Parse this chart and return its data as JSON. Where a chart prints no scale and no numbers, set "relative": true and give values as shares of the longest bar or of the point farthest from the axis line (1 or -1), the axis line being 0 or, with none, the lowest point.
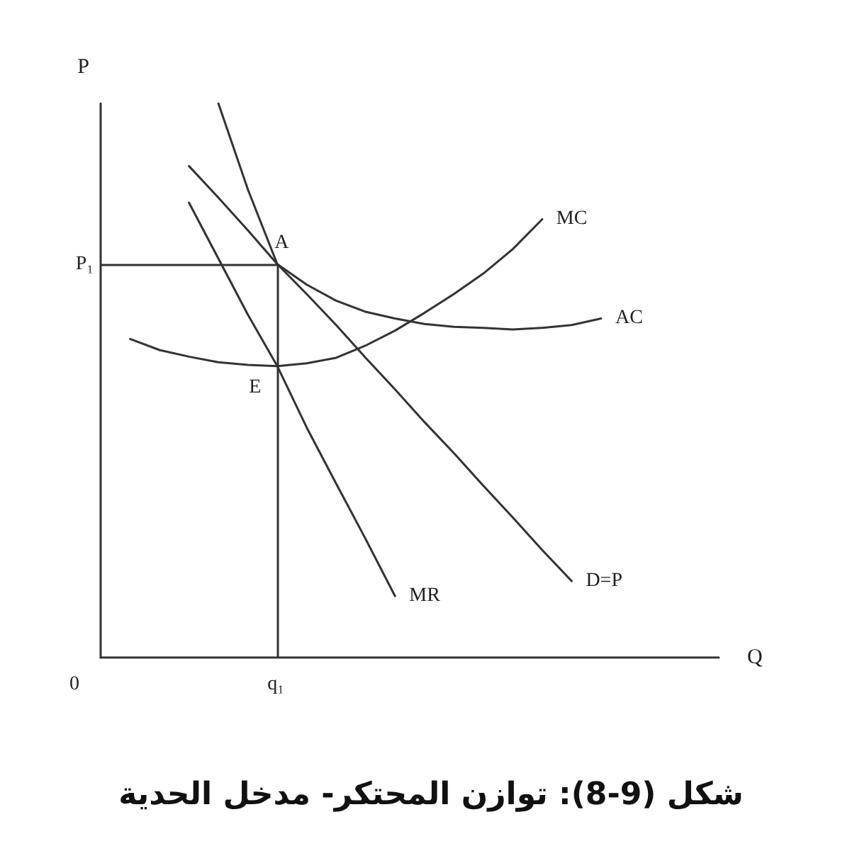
{
  "chart_data": {
    "type": "line",
    "relative": true,
    "title": "شكل (9-8): توازن المحتكر- مدخل الحدية",
    "xlabel": "Q",
    "ylabel": "P",
    "categories": [
      null,
      null,
      null,
      null,
      null,
      null,
      null,
      null,
      null,
      null,
      null,
      null,
      null,
      null,
      null,
      null,
      null,
      null,
      null,
      null,
      null,
      null
    ],
    "series": [
      {
        "name": "MC",
        "color": "#333333",
        "values": [
          null,
          0.575,
          0.555,
          0.543,
          0.533,
          0.528,
          0.526,
          0.531,
          0.541,
          0.563,
          0.59,
          0.622,
          0.656,
          0.693,
          0.737,
          0.791,
          null,
          null,
          null,
          null,
          null,
          null
        ]
      },
      {
        "name": "AC",
        "color": "#333333",
        "values": [
          null,
          null,
          null,
          null,
          1,
          0.845,
          0.71,
          0.673,
          0.644,
          0.624,
          0.612,
          0.602,
          0.597,
          0.595,
          0.592,
          0.595,
          0.6,
          0.612,
          null,
          null,
          null,
          null
        ]
      },
      {
        "name": "D=P",
        "color": "#333333",
        "values": [
          null,
          null,
          null,
          0.887,
          0.83,
          0.771,
          0.71,
          0.656,
          0.6,
          0.541,
          0.484,
          0.425,
          0.369,
          0.31,
          0.253,
          0.194,
          0.138,
          null,
          null,
          null,
          null,
          null
        ]
      },
      {
        "name": "MR",
        "color": "#333333",
        "values": [
          null,
          null,
          null,
          0.821,
          0.72,
          0.619,
          0.526,
          0.415,
          0.314,
          0.214,
          0.111,
          null,
          null,
          null,
          null,
          null,
          null,
          null,
          null,
          null,
          null,
          null
        ]
      }
    ],
    "ref_lines": [
      {
        "axis": "y",
        "value": 0.71,
        "label": "P₁"
      }
    ],
    "annotations": [
      {
        "text": "A",
        "y": 0.71
      },
      {
        "text": "E",
        "y": 0.526
      },
      "0",
      "q₁"
    ],
    "legend": false,
    "grid": false,
    "marker": "none",
    "line_style": "solid"
  }
}
